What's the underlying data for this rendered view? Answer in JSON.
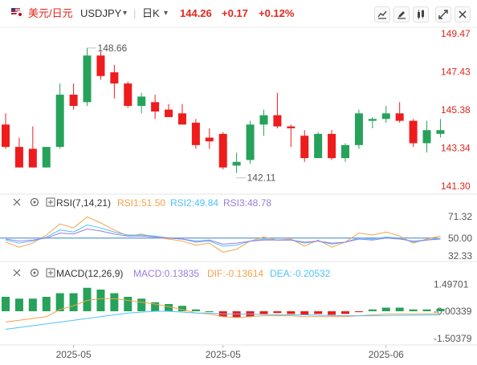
{
  "header": {
    "symbol_name": "美元/日元",
    "symbol_code": "USDJPY",
    "period": "日K",
    "price": "144.26",
    "change": "+0.17",
    "change_pct": "+0.12%",
    "icons": [
      "compare-icon",
      "draw-icon",
      "indicator-icon",
      "fullscreen-icon",
      "close-icon"
    ]
  },
  "colors": {
    "up": "#26a25a",
    "down": "#ee1c1c",
    "price_label": "#e0271e",
    "rsi1": "#f4a24b",
    "rsi2": "#4fc3f7",
    "rsi3": "#9a7de0",
    "macd_line": "#9a7de0",
    "dif": "#f4a24b",
    "dea": "#4fc3f7",
    "axis_text": "#555555"
  },
  "chart_data": {
    "type": "candlestick",
    "main": {
      "ylim": [
        141.3,
        149.47
      ],
      "ticks": [
        "149.47",
        "147.43",
        "145.38",
        "143.34",
        "141.30"
      ],
      "high_label": "148.66",
      "low_label": "142.11",
      "candles": [
        {
          "o": 144.6,
          "h": 145.2,
          "l": 143.3,
          "c": 143.4
        },
        {
          "o": 143.4,
          "h": 143.9,
          "l": 142.3,
          "c": 142.3
        },
        {
          "o": 143.3,
          "h": 144.5,
          "l": 142.3,
          "c": 142.3
        },
        {
          "o": 142.3,
          "h": 143.4,
          "l": 142.3,
          "c": 143.4
        },
        {
          "o": 143.4,
          "h": 146.8,
          "l": 143.3,
          "c": 146.2
        },
        {
          "o": 146.2,
          "h": 146.8,
          "l": 145.4,
          "c": 145.6
        },
        {
          "o": 145.8,
          "h": 148.7,
          "l": 145.6,
          "c": 148.3
        },
        {
          "o": 148.3,
          "h": 148.5,
          "l": 147.0,
          "c": 147.2
        },
        {
          "o": 147.4,
          "h": 147.8,
          "l": 146.0,
          "c": 146.8
        },
        {
          "o": 146.8,
          "h": 146.9,
          "l": 145.5,
          "c": 145.6
        },
        {
          "o": 145.6,
          "h": 146.3,
          "l": 145.2,
          "c": 146.1
        },
        {
          "o": 145.8,
          "h": 146.2,
          "l": 144.9,
          "c": 145.3
        },
        {
          "o": 145.4,
          "h": 145.7,
          "l": 145.0,
          "c": 145.0
        },
        {
          "o": 145.2,
          "h": 145.7,
          "l": 144.6,
          "c": 144.6
        },
        {
          "o": 144.7,
          "h": 144.9,
          "l": 143.3,
          "c": 143.5
        },
        {
          "o": 143.9,
          "h": 144.4,
          "l": 143.3,
          "c": 143.7
        },
        {
          "o": 144.1,
          "h": 144.2,
          "l": 142.2,
          "c": 142.3
        },
        {
          "o": 142.4,
          "h": 143.1,
          "l": 142.0,
          "c": 142.6
        },
        {
          "o": 142.7,
          "h": 144.8,
          "l": 142.5,
          "c": 144.6
        },
        {
          "o": 144.6,
          "h": 145.4,
          "l": 144.0,
          "c": 145.1
        },
        {
          "o": 145.1,
          "h": 146.3,
          "l": 144.4,
          "c": 144.5
        },
        {
          "o": 144.5,
          "h": 144.6,
          "l": 143.4,
          "c": 144.4
        },
        {
          "o": 144.0,
          "h": 144.3,
          "l": 142.6,
          "c": 142.8
        },
        {
          "o": 142.8,
          "h": 144.2,
          "l": 142.8,
          "c": 144.1
        },
        {
          "o": 144.1,
          "h": 144.3,
          "l": 142.7,
          "c": 142.8
        },
        {
          "o": 142.8,
          "h": 143.6,
          "l": 142.6,
          "c": 143.5
        },
        {
          "o": 143.5,
          "h": 145.4,
          "l": 143.3,
          "c": 145.2
        },
        {
          "o": 144.8,
          "h": 145.0,
          "l": 144.4,
          "c": 144.9
        },
        {
          "o": 144.9,
          "h": 145.6,
          "l": 144.7,
          "c": 145.2
        },
        {
          "o": 145.2,
          "h": 145.8,
          "l": 144.7,
          "c": 144.8
        },
        {
          "o": 144.8,
          "h": 144.9,
          "l": 143.4,
          "c": 143.6
        },
        {
          "o": 143.6,
          "h": 144.8,
          "l": 143.1,
          "c": 144.3
        },
        {
          "o": 144.1,
          "h": 144.9,
          "l": 143.9,
          "c": 144.3
        }
      ]
    },
    "rsi": {
      "label": "RSI(7,14,21)",
      "rsi1_label": "RSI1:51.50",
      "rsi2_label": "RSI2:49.84",
      "rsi3_label": "RSI3:48.78",
      "ylim": [
        30,
        76
      ],
      "ticks": [
        "71.32",
        "50.00",
        "32.33"
      ],
      "series": [
        {
          "name": "RSI1",
          "values": [
            46,
            41,
            45,
            53,
            64,
            60,
            71,
            65,
            58,
            52,
            54,
            51,
            49,
            47,
            43,
            45,
            36,
            39,
            47,
            51,
            48,
            49,
            42,
            48,
            41,
            46,
            55,
            53,
            56,
            52,
            45,
            49,
            52
          ]
        },
        {
          "name": "RSI2",
          "values": [
            48,
            45,
            47,
            51,
            58,
            56,
            63,
            60,
            56,
            53,
            53,
            52,
            50,
            49,
            46,
            47,
            42,
            43,
            47,
            49,
            48,
            48,
            45,
            47,
            44,
            46,
            50,
            49,
            51,
            50,
            46,
            48,
            50
          ]
        },
        {
          "name": "RSI3",
          "values": [
            49,
            47,
            48,
            50,
            55,
            54,
            59,
            57,
            54,
            52,
            52,
            51,
            50,
            49,
            47,
            48,
            44,
            45,
            47,
            48,
            48,
            48,
            46,
            47,
            45,
            46,
            49,
            48,
            50,
            49,
            47,
            48,
            49
          ]
        }
      ]
    },
    "macd": {
      "label": "MACD(12,26,9)",
      "macd_label": "MACD:0.13835",
      "dif_label": "DIF:-0.13614",
      "dea_label": "DEA:-0.20532",
      "ylim": [
        -1.6,
        1.6
      ],
      "ticks": [
        "1.49701",
        "-0.00339",
        "-1.50379"
      ],
      "macd": [
        0.8,
        0.7,
        0.7,
        0.8,
        1.0,
        1.0,
        1.3,
        1.2,
        1.0,
        0.8,
        0.7,
        0.5,
        0.4,
        0.3,
        0.1,
        0.0,
        -0.3,
        -0.35,
        -0.3,
        -0.15,
        -0.1,
        -0.15,
        -0.2,
        -0.15,
        -0.2,
        -0.15,
        -0.05,
        0.1,
        0.2,
        0.2,
        0.1,
        0.1,
        0.13835
      ],
      "dif": [
        -0.6,
        -0.5,
        -0.4,
        -0.3,
        0.1,
        0.3,
        0.6,
        0.7,
        0.7,
        0.6,
        0.5,
        0.4,
        0.25,
        0.1,
        -0.1,
        -0.15,
        -0.3,
        -0.35,
        -0.3,
        -0.25,
        -0.25,
        -0.25,
        -0.3,
        -0.3,
        -0.3,
        -0.3,
        -0.25,
        -0.2,
        -0.15,
        -0.15,
        -0.15,
        -0.14,
        -0.13614
      ],
      "dea": [
        -1.0,
        -0.9,
        -0.8,
        -0.7,
        -0.6,
        -0.5,
        -0.4,
        -0.3,
        -0.2,
        -0.1,
        -0.05,
        0.0,
        0.0,
        -0.05,
        -0.1,
        -0.1,
        -0.15,
        -0.15,
        -0.15,
        -0.18,
        -0.2,
        -0.2,
        -0.2,
        -0.22,
        -0.24,
        -0.25,
        -0.25,
        -0.25,
        -0.24,
        -0.23,
        -0.22,
        -0.21,
        -0.20532
      ]
    },
    "x_ticks": [
      {
        "label": "2025-05",
        "index": 5
      },
      {
        "label": "2025-05",
        "index": 16
      },
      {
        "label": "2025-06",
        "index": 28
      }
    ]
  }
}
